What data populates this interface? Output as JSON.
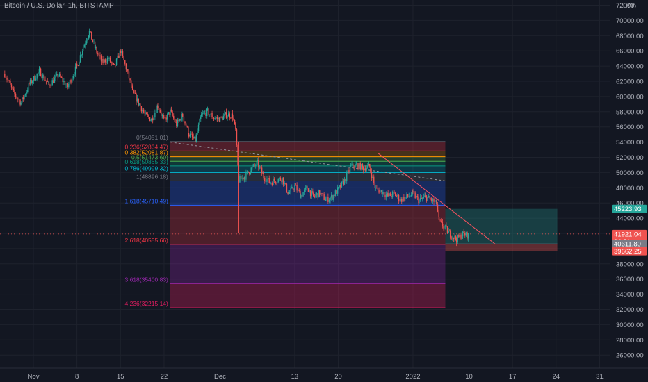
{
  "header": {
    "title": "Bitcoin / U.S. Dollar, 1h, BITSTAMP",
    "currency": "USD"
  },
  "colors": {
    "background": "#131722",
    "grid": "#1e222d",
    "axis_text": "#b2b5be",
    "up": "#26a69a",
    "down": "#ef5350",
    "trendline": "#f7525f"
  },
  "chart_data": {
    "type": "candlestick",
    "title": "Bitcoin / U.S. Dollar, 1h, BITSTAMP",
    "ylim": [
      24000,
      72000
    ],
    "y_ticks": [
      {
        "label": "24000.00",
        "value": 24000
      },
      {
        "label": "26000.00",
        "value": 26000
      },
      {
        "label": "28000.00",
        "value": 28000
      },
      {
        "label": "30000.00",
        "value": 30000
      },
      {
        "label": "32000.00",
        "value": 32000
      },
      {
        "label": "34000.00",
        "value": 34000
      },
      {
        "label": "36000.00",
        "value": 36000
      },
      {
        "label": "38000.00",
        "value": 38000
      },
      {
        "label": "40000.00",
        "value": 40000
      },
      {
        "label": "42000.00",
        "value": 42000
      },
      {
        "label": "44000.00",
        "value": 44000
      },
      {
        "label": "46000.00",
        "value": 46000
      },
      {
        "label": "48000.00",
        "value": 48000
      },
      {
        "label": "50000.00",
        "value": 50000
      },
      {
        "label": "52000.00",
        "value": 52000
      },
      {
        "label": "54000.00",
        "value": 54000
      },
      {
        "label": "56000.00",
        "value": 56000
      },
      {
        "label": "58000.00",
        "value": 58000
      },
      {
        "label": "60000.00",
        "value": 60000
      },
      {
        "label": "62000.00",
        "value": 62000
      },
      {
        "label": "64000.00",
        "value": 64000
      },
      {
        "label": "66000.00",
        "value": 66000
      },
      {
        "label": "68000.00",
        "value": 68000
      },
      {
        "label": "70000.00",
        "value": 70000
      },
      {
        "label": "72000",
        "value": 72000
      }
    ],
    "x_ticks": [
      {
        "label": "Nov",
        "day": 0
      },
      {
        "label": "8",
        "day": 7
      },
      {
        "label": "15",
        "day": 14
      },
      {
        "label": "22",
        "day": 21
      },
      {
        "label": "Dec",
        "day": 30
      },
      {
        "label": "13",
        "day": 42
      },
      {
        "label": "20",
        "day": 49
      },
      {
        "label": "2022",
        "day": 61
      },
      {
        "label": "10",
        "day": 70
      },
      {
        "label": "17",
        "day": 77
      },
      {
        "label": "24",
        "day": 84
      },
      {
        "label": "31",
        "day": 91
      }
    ],
    "x_axis_note": "day = days since Nov 1, 2021",
    "price_path": [
      {
        "day": -4.6,
        "price": 63000
      },
      {
        "day": -3.2,
        "price": 60500
      },
      {
        "day": -2,
        "price": 59200
      },
      {
        "day": -0.5,
        "price": 61800
      },
      {
        "day": 1,
        "price": 63300
      },
      {
        "day": 2.5,
        "price": 61500
      },
      {
        "day": 4,
        "price": 62800
      },
      {
        "day": 5.5,
        "price": 61300
      },
      {
        "day": 7,
        "price": 64000
      },
      {
        "day": 8,
        "price": 66500
      },
      {
        "day": 9,
        "price": 68500
      },
      {
        "day": 10,
        "price": 66200
      },
      {
        "day": 11,
        "price": 64500
      },
      {
        "day": 12,
        "price": 65000
      },
      {
        "day": 13,
        "price": 63800
      },
      {
        "day": 14,
        "price": 66000
      },
      {
        "day": 15,
        "price": 63500
      },
      {
        "day": 16,
        "price": 60500
      },
      {
        "day": 17,
        "price": 59000
      },
      {
        "day": 18,
        "price": 57500
      },
      {
        "day": 19,
        "price": 57000
      },
      {
        "day": 20,
        "price": 58800
      },
      {
        "day": 21,
        "price": 56800
      },
      {
        "day": 22,
        "price": 58000
      },
      {
        "day": 23,
        "price": 56300
      },
      {
        "day": 24,
        "price": 57500
      },
      {
        "day": 25,
        "price": 55000
      },
      {
        "day": 26,
        "price": 54200
      },
      {
        "day": 27,
        "price": 57500
      },
      {
        "day": 28,
        "price": 58000
      },
      {
        "day": 29,
        "price": 57200
      },
      {
        "day": 30,
        "price": 57000
      },
      {
        "day": 31,
        "price": 57600
      },
      {
        "day": 32,
        "price": 57500
      },
      {
        "day": 32.5,
        "price": 55500
      },
      {
        "day": 33,
        "price": 49000
      },
      {
        "day": 34,
        "price": 49500
      },
      {
        "day": 35,
        "price": 50500
      },
      {
        "day": 36,
        "price": 51200
      },
      {
        "day": 37,
        "price": 49500
      },
      {
        "day": 38,
        "price": 48700
      },
      {
        "day": 39,
        "price": 49000
      },
      {
        "day": 40,
        "price": 49200
      },
      {
        "day": 41,
        "price": 47200
      },
      {
        "day": 42,
        "price": 48200
      },
      {
        "day": 43,
        "price": 47000
      },
      {
        "day": 44,
        "price": 48000
      },
      {
        "day": 45,
        "price": 46800
      },
      {
        "day": 46,
        "price": 47300
      },
      {
        "day": 47,
        "price": 46400
      },
      {
        "day": 48,
        "price": 46800
      },
      {
        "day": 49,
        "price": 47800
      },
      {
        "day": 50,
        "price": 48900
      },
      {
        "day": 51,
        "price": 50800
      },
      {
        "day": 52,
        "price": 51000
      },
      {
        "day": 53,
        "price": 50600
      },
      {
        "day": 54,
        "price": 50800
      },
      {
        "day": 55,
        "price": 47800
      },
      {
        "day": 56,
        "price": 47500
      },
      {
        "day": 57,
        "price": 46900
      },
      {
        "day": 58,
        "price": 47200
      },
      {
        "day": 59,
        "price": 46400
      },
      {
        "day": 60,
        "price": 46800
      },
      {
        "day": 61,
        "price": 47200
      },
      {
        "day": 62,
        "price": 46300
      },
      {
        "day": 63,
        "price": 46800
      },
      {
        "day": 64,
        "price": 46400
      },
      {
        "day": 64.8,
        "price": 45900
      },
      {
        "day": 65.2,
        "price": 43500
      },
      {
        "day": 66,
        "price": 42800
      },
      {
        "day": 67,
        "price": 41900
      },
      {
        "day": 68,
        "price": 41200
      },
      {
        "day": 69,
        "price": 41900
      },
      {
        "day": 70,
        "price": 41700
      }
    ],
    "fibonacci": {
      "x_start_day": 22.0,
      "x_end_day": 66.2,
      "levels": [
        {
          "label": "0(54051.01)",
          "price": 54051.01,
          "color": "#787b86",
          "fill": "rgba(120,123,134,0.25)"
        },
        {
          "label": "0.236(52834.47)",
          "price": 52834.47,
          "color": "#f23645",
          "fill": "rgba(242,54,69,0.28)"
        },
        {
          "label": "0.382(52081.87)",
          "price": 52081.87,
          "color": "#ff9800",
          "fill": "rgba(255,152,0,0.22)"
        },
        {
          "label": "0.5(51473.60)",
          "price": 51473.6,
          "color": "#4caf50",
          "fill": "rgba(76,175,80,0.25)"
        },
        {
          "label": "0.618(50865.33)",
          "price": 50865.33,
          "color": "#089981",
          "fill": "rgba(8,153,129,0.25)"
        },
        {
          "label": "0.786(49999.32)",
          "price": 49999.32,
          "color": "#00bcd4",
          "fill": "rgba(0,188,212,0.22)"
        },
        {
          "label": "1(48896.18)",
          "price": 48896.18,
          "color": "#787b86",
          "fill": "rgba(120,123,134,0.22)"
        },
        {
          "label": "1.618(45710.49)",
          "price": 45710.49,
          "color": "#2962ff",
          "fill": "rgba(41,98,255,0.28)"
        },
        {
          "label": "2.618(40555.66)",
          "price": 40555.66,
          "color": "#f23645",
          "fill": "rgba(242,54,69,0.26)"
        },
        {
          "label": "3.618(35400.83)",
          "price": 35400.83,
          "color": "#9c27b0",
          "fill": "rgba(156,39,176,0.28)"
        },
        {
          "label": "4.236(32215.14)",
          "price": 32215.14,
          "color": "#e91e63",
          "fill": "rgba(233,30,99,0.30)"
        }
      ]
    },
    "position": {
      "x_start_day": 66.2,
      "x_end_day": 84.2,
      "target": 45223.93,
      "entry": 40611.8,
      "stop": 39662.25
    },
    "trendline": {
      "from": {
        "day": 55.3,
        "price": 52600
      },
      "to": {
        "day": 74.2,
        "price": 40600
      }
    },
    "dashed_line": {
      "from": {
        "day": 22.0,
        "price": 54000
      },
      "to": {
        "day": 66.2,
        "price": 48900
      }
    },
    "current_price_line": 41921.04,
    "price_labels": [
      {
        "text": "45223.93",
        "value": 45223.93,
        "bg": "#26a69a",
        "fg": "#ffffff"
      },
      {
        "text": "41921.04",
        "value": 41921.04,
        "bg": "#ef5350",
        "fg": "#ffffff",
        "sub": "34:51"
      },
      {
        "text": "40611.80",
        "value": 40611.8,
        "bg": "#787b86",
        "fg": "#ffffff"
      },
      {
        "text": "39662.25",
        "value": 39662.25,
        "bg": "#ef5350",
        "fg": "#ffffff"
      }
    ]
  }
}
